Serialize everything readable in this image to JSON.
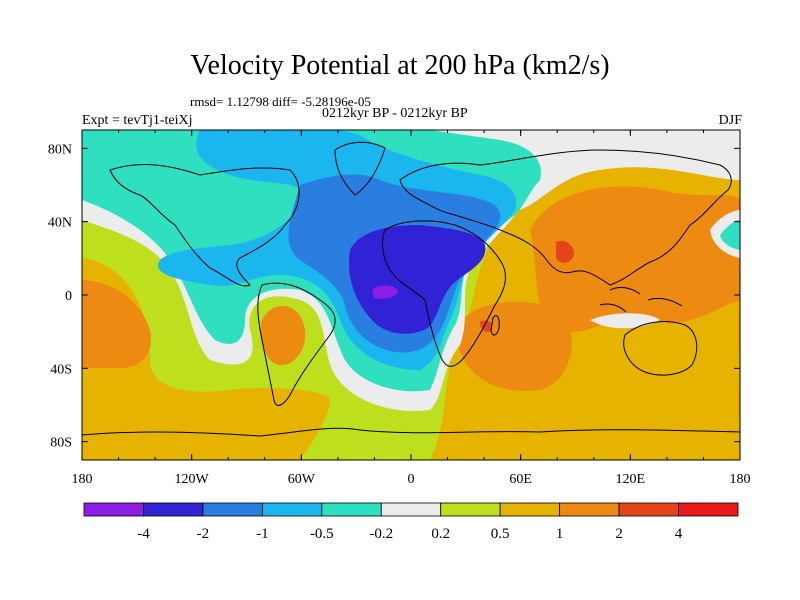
{
  "title": "Velocity Potential at 200 hPa (km2/s)",
  "stats_line": "rmsd= 1.12798 diff= -5.28196e-05",
  "period_line": "0212kyr BP - 0212kyr BP",
  "left_label": "Expt = tevTj1-teiXj",
  "right_label": "DJF",
  "chart_data": {
    "type": "heatmap",
    "title": "Velocity Potential at 200 hPa (km2/s)",
    "xlabel": "",
    "ylabel": "",
    "xlim": [
      -180,
      180
    ],
    "ylim": [
      -90,
      90
    ],
    "x_ticks": [
      "180",
      "120W",
      "60W",
      "0",
      "60E",
      "120E",
      "180"
    ],
    "y_ticks": [
      "80N",
      "40N",
      "0",
      "40S",
      "80S"
    ],
    "colorbar": {
      "labels": [
        "-4",
        "-2",
        "-1",
        "-0.5",
        "-0.2",
        "0.2",
        "0.5",
        "1",
        "2",
        "4"
      ],
      "colors": [
        "#8c1ee6",
        "#3222d6",
        "#2a7ee0",
        "#1bb6ee",
        "#2ee0c0",
        "#ececec",
        "#bedf1e",
        "#e6b300",
        "#ec8a12",
        "#e6441a",
        "#e81a1a"
      ]
    },
    "features": [
      {
        "name": "negative-center-atlantic-africa",
        "value_range": "< -4",
        "lon": -15,
        "lat": 0
      },
      {
        "name": "positive-center-indian-ocean",
        "value_range": "2 to 4",
        "lon": 45,
        "lat": -18
      },
      {
        "name": "positive-center-india",
        "value_range": "2 to 4",
        "lon": 85,
        "lat": 22
      }
    ]
  }
}
